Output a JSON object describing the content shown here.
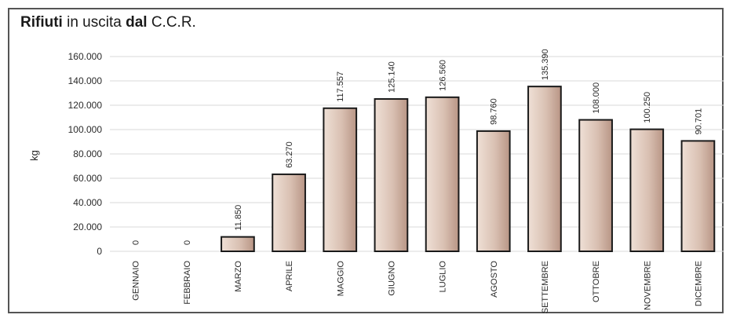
{
  "title_parts": [
    {
      "text": "Rifiuti ",
      "bold": true
    },
    {
      "text": "in uscita ",
      "bold": false
    },
    {
      "text": "dal ",
      "bold": true
    },
    {
      "text": "C.C.R.",
      "bold": false
    }
  ],
  "chart_data": {
    "type": "bar",
    "title": "Rifiuti in uscita dal C.C.R.",
    "xlabel": "",
    "ylabel": "kg",
    "ylim": [
      0,
      160000
    ],
    "yticks": [
      0,
      20000,
      40000,
      60000,
      80000,
      100000,
      120000,
      140000,
      160000
    ],
    "ytick_labels": [
      "0",
      "20.000",
      "40.000",
      "60.000",
      "80.000",
      "100.000",
      "120.000",
      "140.000",
      "160.000"
    ],
    "categories": [
      "GENNAIO",
      "FEBBRAIO",
      "MARZO",
      "APRILE",
      "MAGGIO",
      "GIUGNO",
      "LUGLIO",
      "AGOSTO",
      "SETTEMBRE",
      "OTTOBRE",
      "NOVEMBRE",
      "DICEMBRE"
    ],
    "values": [
      0,
      0,
      11850,
      63270,
      117557,
      125140,
      126560,
      98760,
      135390,
      108000,
      100250,
      90701
    ],
    "value_labels": [
      "0",
      "0",
      "11.850",
      "63.270",
      "117.557",
      "125.140",
      "126.560",
      "98.760",
      "135.390",
      "108.000",
      "100.250",
      "90.701"
    ],
    "grid": true,
    "legend": "none",
    "colors": {
      "bar_light": "#efe0d6",
      "bar_dark": "#b89585",
      "bar_edge": "#1a1a1a",
      "grid": "#d9d9d9"
    }
  }
}
